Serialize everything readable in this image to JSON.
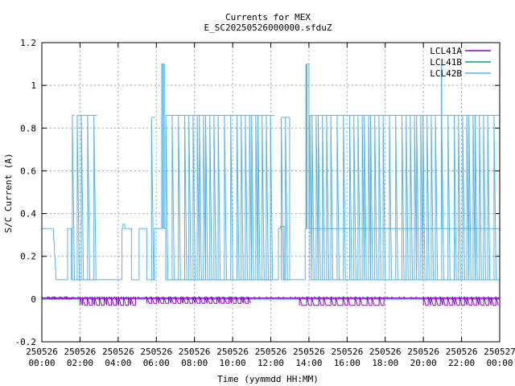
{
  "chart_data": {
    "type": "line",
    "title": "Currents for MEX",
    "subtitle": "E_SC20250526000000.sfduZ",
    "xlabel": "Time (yymmdd HH:MM)",
    "ylabel": "S/C Current (A)",
    "xlim": [
      0,
      24
    ],
    "ylim": [
      -0.2,
      1.2
    ],
    "grid": true,
    "legend_position": "top-right",
    "y_ticks": [
      {
        "value": -0.2,
        "label": "-0.2"
      },
      {
        "value": 0,
        "label": "0"
      },
      {
        "value": 0.2,
        "label": "0.2"
      },
      {
        "value": 0.4,
        "label": "0.4"
      },
      {
        "value": 0.6,
        "label": "0.6"
      },
      {
        "value": 0.8,
        "label": "0.8"
      },
      {
        "value": 1.0,
        "label": "1"
      },
      {
        "value": 1.2,
        "label": "1.2"
      }
    ],
    "x_ticks": [
      {
        "value": 0,
        "date": "250526",
        "time": "00:00"
      },
      {
        "value": 2,
        "date": "250526",
        "time": "02:00"
      },
      {
        "value": 4,
        "date": "250526",
        "time": "04:00"
      },
      {
        "value": 6,
        "date": "250526",
        "time": "06:00"
      },
      {
        "value": 8,
        "date": "250526",
        "time": "08:00"
      },
      {
        "value": 10,
        "date": "250526",
        "time": "10:00"
      },
      {
        "value": 12,
        "date": "250526",
        "time": "12:00"
      },
      {
        "value": 14,
        "date": "250526",
        "time": "14:00"
      },
      {
        "value": 16,
        "date": "250526",
        "time": "16:00"
      },
      {
        "value": 18,
        "date": "250526",
        "time": "18:00"
      },
      {
        "value": 20,
        "date": "250526",
        "time": "20:00"
      },
      {
        "value": 22,
        "date": "250526",
        "time": "22:00"
      },
      {
        "value": 24,
        "date": "250527",
        "time": "00:00"
      }
    ],
    "series": [
      {
        "name": "LCL41A",
        "color": "#9400d3",
        "x": [
          0,
          24
        ],
        "y": [
          0.005,
          0.005
        ],
        "pulse_segments": [
          [
            0.3,
            1.6,
            0.0,
            0.01
          ],
          [
            2.0,
            5.0,
            -0.03,
            0.01
          ],
          [
            5.5,
            11.0,
            -0.02,
            0.01
          ],
          [
            13.5,
            18.0,
            -0.03,
            0.01
          ],
          [
            20.0,
            24.0,
            -0.03,
            0.01
          ]
        ]
      },
      {
        "name": "LCL41B",
        "color": "#009e73",
        "x": [
          0,
          24
        ],
        "y": [
          0.0,
          0.0
        ],
        "pulse_segments": [
          [
            0.0,
            24.0,
            0.0,
            0.01
          ]
        ]
      },
      {
        "name": "LCL42B",
        "color": "#56b4e9",
        "x": [
          0.0,
          0.6,
          0.6,
          0.75,
          0.75,
          1.35,
          1.35,
          1.55,
          1.55,
          1.75,
          1.75,
          4.2,
          4.2,
          4.25,
          4.25,
          4.35,
          4.35,
          4.7,
          4.7,
          5.1,
          5.1,
          5.5,
          5.5,
          5.8,
          5.8,
          5.9,
          5.9,
          6.1,
          6.1,
          6.28,
          6.28,
          6.42,
          6.42,
          6.5,
          6.5,
          12.4,
          12.4,
          12.5,
          12.5,
          12.7,
          12.7,
          13.8,
          13.8,
          13.9,
          13.9,
          14.0,
          14.0,
          24.0
        ],
        "y": [
          0.33,
          0.33,
          0.33,
          0.09,
          0.09,
          0.09,
          0.33,
          0.33,
          0.09,
          0.09,
          0.09,
          0.09,
          0.33,
          0.33,
          0.35,
          0.35,
          0.33,
          0.33,
          0.09,
          0.09,
          0.33,
          0.33,
          0.09,
          0.09,
          0.09,
          0.09,
          0.33,
          0.33,
          0.33,
          0.33,
          1.1,
          1.1,
          0.33,
          0.33,
          0.09,
          0.09,
          0.33,
          0.33,
          0.34,
          0.34,
          0.09,
          0.09,
          0.33,
          0.33,
          1.1,
          1.1,
          0.33,
          0.33
        ],
        "pulse_segments": [
          [
            1.6,
            1.72,
            0.09,
            0.86
          ],
          [
            1.85,
            2.9,
            0.09,
            0.86
          ],
          [
            5.75,
            5.95,
            0.09,
            0.85
          ],
          [
            6.5,
            12.2,
            0.09,
            0.86
          ],
          [
            12.55,
            13.0,
            0.09,
            0.85
          ],
          [
            14.05,
            24.0,
            0.09,
            0.86
          ]
        ],
        "spikes": [
          {
            "x": 6.35,
            "y": 1.1
          },
          {
            "x": 13.85,
            "y": 1.1
          },
          {
            "x": 20.95,
            "y": 1.1
          }
        ]
      }
    ]
  }
}
